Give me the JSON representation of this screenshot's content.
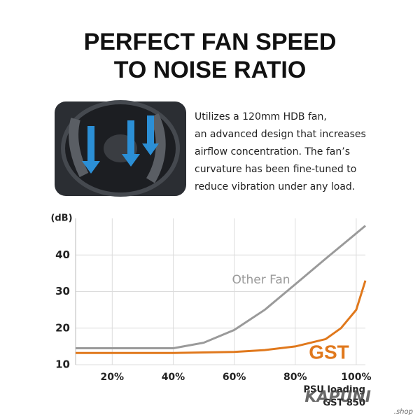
{
  "header": {
    "title_lines": [
      "PERFECT FAN SPEED",
      "TO NOISE RATIO"
    ]
  },
  "description": {
    "lines": [
      "Utilizes a 120mm HDB fan,",
      "an advanced design that increases",
      "airflow concentration. The fan’s",
      "curvature has been fine-tuned to",
      "reduce vibration under any load."
    ]
  },
  "chart_data": {
    "type": "line",
    "y_label": "(dB)",
    "x_label": "PSU loading",
    "x_sublabel": "GST 850",
    "xlim": [
      8,
      103
    ],
    "ylim": [
      10,
      50
    ],
    "xticks": [
      {
        "value": 20,
        "label": "20%"
      },
      {
        "value": 40,
        "label": "40%"
      },
      {
        "value": 60,
        "label": "60%"
      },
      {
        "value": 80,
        "label": "80%"
      },
      {
        "value": 100,
        "label": "100%"
      }
    ],
    "yticks": [
      10,
      20,
      30,
      40
    ],
    "grid": true,
    "series": [
      {
        "name": "Other Fan",
        "color": "#9a9a9a",
        "x": [
          8,
          40,
          50,
          60,
          70,
          80,
          90,
          103
        ],
        "values": [
          14.5,
          14.5,
          16,
          19.5,
          25,
          32,
          39,
          48
        ]
      },
      {
        "name": "GST",
        "color": "#e0781c",
        "x": [
          8,
          40,
          60,
          70,
          80,
          90,
          95,
          100,
          103
        ],
        "values": [
          13.2,
          13.2,
          13.5,
          14,
          15,
          17,
          20,
          25,
          33
        ]
      }
    ]
  },
  "watermark": {
    "brand": "KAPUNI",
    "suffix": ".shop"
  }
}
